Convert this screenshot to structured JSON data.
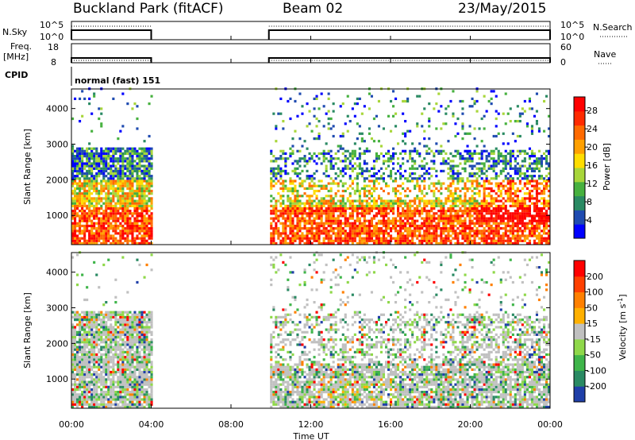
{
  "header": {
    "site": "Buckland Park (fitACF)",
    "beam": "Beam 02",
    "date": "23/May/2015"
  },
  "top_panels": {
    "nsky_label": "N.Sky",
    "nsky_ticks": [
      "10^5",
      "10^0"
    ],
    "nsearch_label": "N.Search",
    "nsearch_ticks": [
      "10^5",
      "10^0"
    ],
    "freq_label_1": "Freq.",
    "freq_label_2": "[MHz]",
    "freq_ticks": [
      "18",
      "8"
    ],
    "nave_label": "Nave",
    "nave_ticks": [
      "60",
      "0"
    ],
    "cpid_label": "CPID",
    "cpid_value": "normal (fast) 151"
  },
  "chart_data": [
    {
      "type": "heatmap",
      "panel": "power",
      "ylabel": "Slant Range [km]",
      "xlabel": "Time UT",
      "x_ticks": [
        "00:00",
        "04:00",
        "08:00",
        "12:00",
        "16:00",
        "20:00",
        "00:00"
      ],
      "xlim_hours": [
        0,
        24
      ],
      "y_ticks": [
        "1000",
        "2000",
        "3000",
        "4000"
      ],
      "ylim": [
        180,
        4550
      ],
      "colorbar_label": "Power [dB]",
      "colorbar_ticks": [
        "4",
        "8",
        "12",
        "16",
        "20",
        "24",
        "28"
      ],
      "colorbar_range": [
        0,
        31
      ],
      "colors": [
        "#0000ff",
        "#1f4bb0",
        "#2a8a63",
        "#47b13f",
        "#a8d63a",
        "#ffdd00",
        "#ffa000",
        "#ff6a00",
        "#ff2a00",
        "#ff0000"
      ],
      "data_gaps_hours": [
        [
          4.0,
          9.9
        ]
      ]
    },
    {
      "type": "heatmap",
      "panel": "velocity",
      "ylabel": "Slant Range [km]",
      "xlabel": "Time UT",
      "x_ticks": [
        "00:00",
        "04:00",
        "08:00",
        "12:00",
        "16:00",
        "20:00",
        "00:00"
      ],
      "xlim_hours": [
        0,
        24
      ],
      "y_ticks": [
        "1000",
        "2000",
        "3000",
        "4000"
      ],
      "ylim": [
        180,
        4550
      ],
      "colorbar_label": "Velocity [m s",
      "colorbar_label_sup": "-1",
      "colorbar_label_close": "]",
      "colorbar_ticks": [
        "200",
        "100",
        "50",
        "15",
        "-15",
        "-50",
        "-100",
        "-200"
      ],
      "colors": [
        "#1f3fa8",
        "#2a8a63",
        "#3fb54a",
        "#8fd84a",
        "#c0c0c0",
        "#ffb000",
        "#ff8000",
        "#ff4000",
        "#ff0000"
      ],
      "data_gaps_hours": [
        [
          4.0,
          9.9
        ]
      ]
    }
  ],
  "x_axis_title": "Time UT"
}
